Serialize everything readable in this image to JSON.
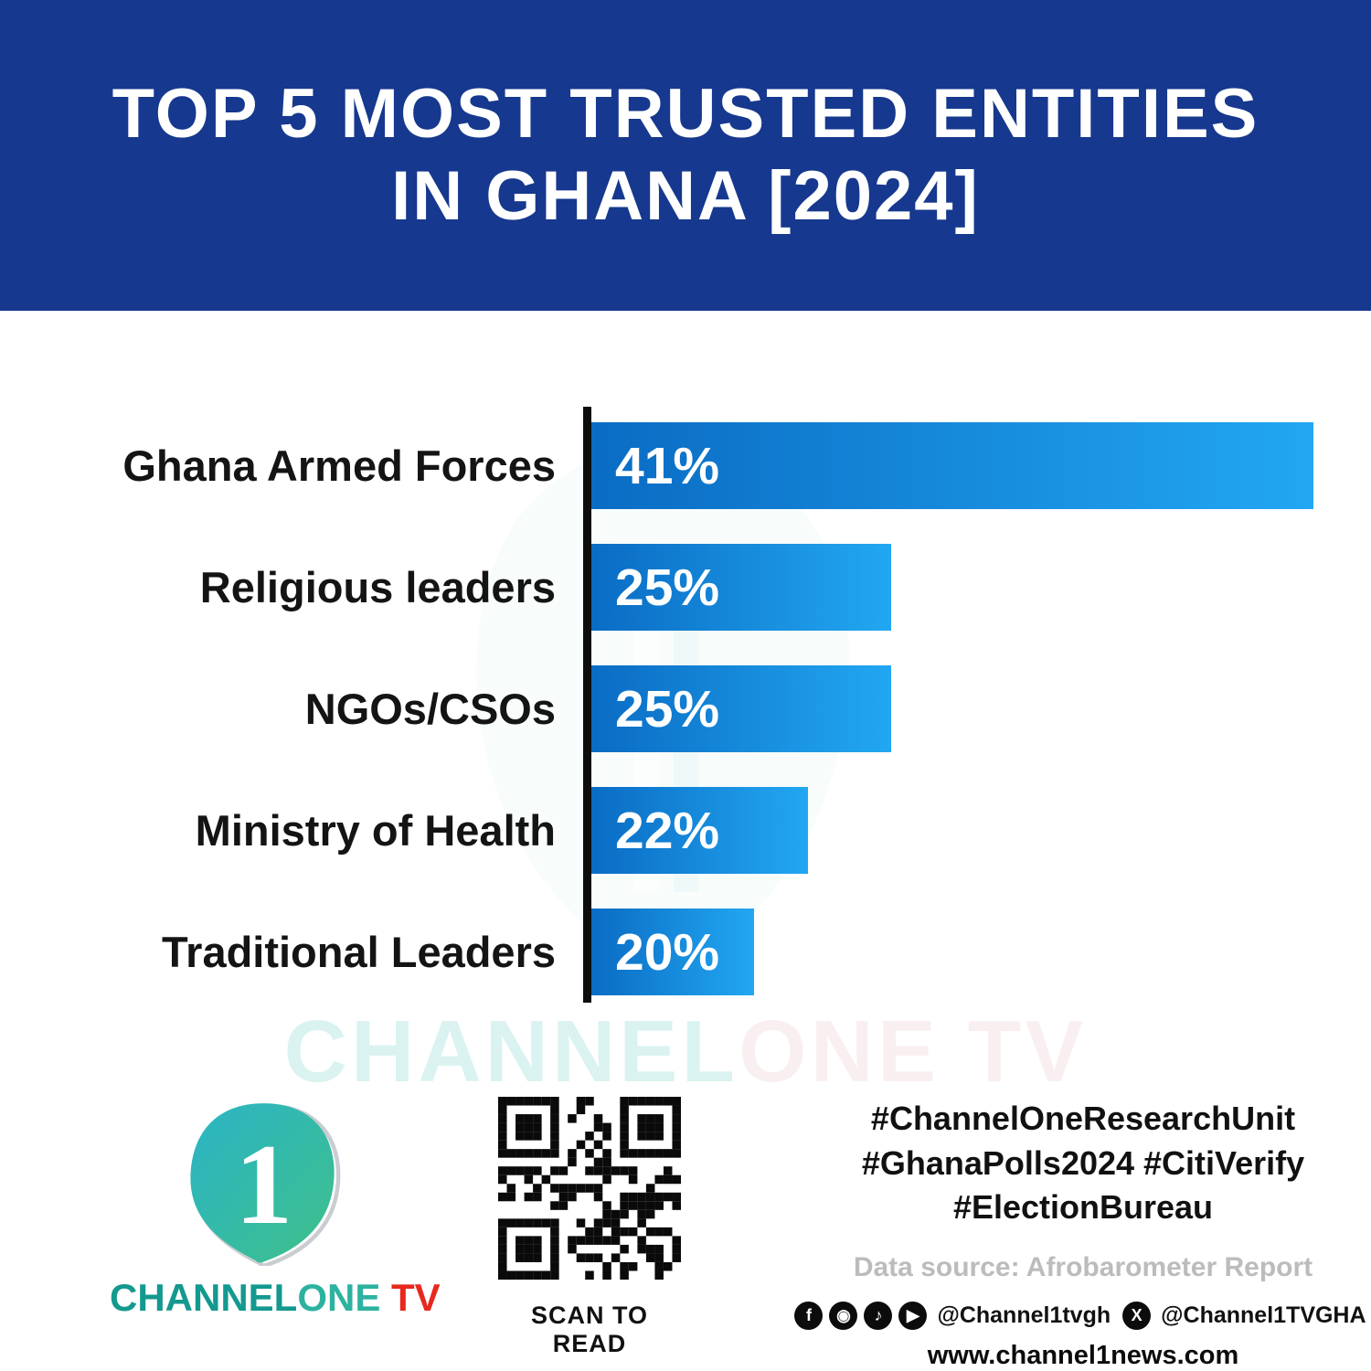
{
  "title": {
    "line1": "TOP 5 MOST TRUSTED ENTITIES",
    "line2": "IN GHANA [2024]"
  },
  "chart_data": {
    "type": "bar",
    "orientation": "horizontal",
    "title": "TOP 5 MOST TRUSTED ENTITIES IN GHANA [2024]",
    "categories": [
      "Ghana Armed Forces",
      "Religious leaders",
      "NGOs/CSOs",
      "Ministry of Health",
      "Traditional Leaders"
    ],
    "values": [
      41,
      25,
      25,
      22,
      20
    ],
    "value_labels": [
      "41%",
      "25%",
      "25%",
      "22%",
      "20%"
    ],
    "xlim": [
      0,
      41
    ],
    "grid": false,
    "legend": false,
    "bar_display_widths_pct": [
      100,
      41.5,
      41.5,
      30,
      22.5
    ],
    "bar_gradient": [
      "#0a6cc4",
      "#22a7f2"
    ],
    "axis_color": "#0d0d0d"
  },
  "watermark": {
    "part1": "CHANNEL",
    "part2": "ONE TV"
  },
  "footer": {
    "logo": {
      "digit": "1",
      "brand_channel": "CHANNEL",
      "brand_one": "ONE",
      "brand_tv": " TV"
    },
    "qr_caption": "SCAN TO READ",
    "hashtags": [
      "#ChannelOneResearchUnit",
      "#GhanaPolls2024 #CitiVerify",
      "#ElectionBureau"
    ],
    "data_source": "Data source: Afrobarometer Report",
    "social": {
      "handle1": "@Channel1tvgh",
      "handle2": "@Channel1TVGHA",
      "x_glyph": "X"
    },
    "website": "www.channel1news.com"
  },
  "colors": {
    "banner_bg": "#16388e",
    "bar_start": "#0a6cc4",
    "bar_end": "#22a7f2",
    "brand_teal": "#13998f",
    "brand_red": "#e8281e"
  }
}
